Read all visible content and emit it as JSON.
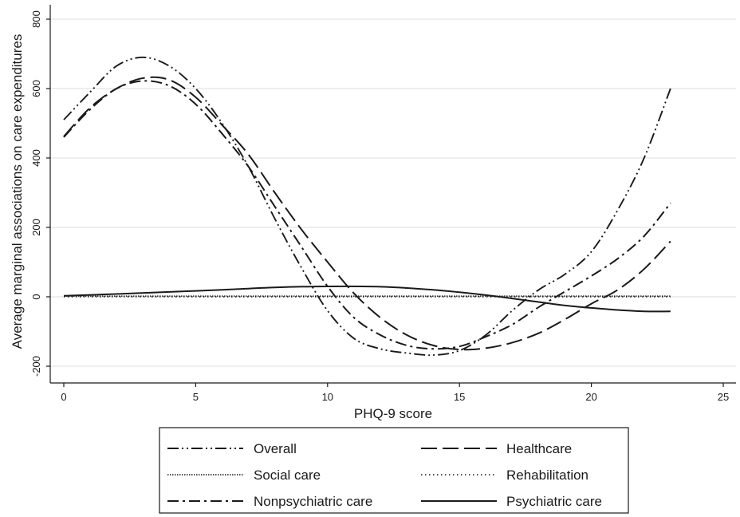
{
  "chart_data": {
    "type": "line",
    "title": "",
    "xlabel": "PHQ-9 score",
    "ylabel": "Average marginal associations on care expenditures",
    "xlim": [
      0,
      25
    ],
    "ylim": [
      -200,
      800
    ],
    "xticks": [
      0,
      5,
      10,
      15,
      20,
      25
    ],
    "yticks": [
      -200,
      0,
      200,
      400,
      600,
      800
    ],
    "grid": "horizontal",
    "legend_position": "bottom",
    "series": [
      {
        "name": "Overall",
        "style": "dash-dot-dot",
        "color": "#1a1a1a",
        "x": [
          0,
          1,
          2,
          3,
          4,
          5,
          6,
          7,
          8,
          9,
          10,
          11,
          12,
          13,
          14,
          15,
          16,
          17,
          18,
          19,
          20,
          21,
          22,
          23
        ],
        "y": [
          510,
          590,
          665,
          690,
          665,
          600,
          500,
          375,
          225,
          85,
          -40,
          -120,
          -150,
          -162,
          -168,
          -155,
          -110,
          -40,
          20,
          65,
          130,
          250,
          400,
          600
        ]
      },
      {
        "name": "Healthcare",
        "style": "long-dash",
        "color": "#1a1a1a",
        "x": [
          0,
          1,
          2,
          3,
          4,
          5,
          6,
          7,
          8,
          9,
          10,
          11,
          12,
          13,
          14,
          15,
          16,
          17,
          18,
          19,
          20,
          21,
          22,
          23
        ],
        "y": [
          462,
          545,
          600,
          630,
          625,
          575,
          495,
          410,
          300,
          195,
          100,
          10,
          -60,
          -110,
          -140,
          -152,
          -148,
          -132,
          -105,
          -65,
          -20,
          20,
          80,
          160
        ]
      },
      {
        "name": "Social care",
        "style": "fine-dot",
        "color": "#1a1a1a",
        "x": [
          0,
          5,
          10,
          15,
          20,
          23
        ],
        "y": [
          2,
          2,
          2,
          2,
          2,
          2
        ]
      },
      {
        "name": "Rehabilitation",
        "style": "dot",
        "color": "#1a1a1a",
        "x": [
          0,
          5,
          10,
          15,
          20,
          23
        ],
        "y": [
          0,
          0,
          0,
          0,
          0,
          0
        ]
      },
      {
        "name": "Nonpsychiatric care",
        "style": "dash-dot",
        "color": "#1a1a1a",
        "x": [
          0,
          1,
          2,
          3,
          4,
          5,
          6,
          7,
          8,
          9,
          10,
          11,
          12,
          13,
          14,
          15,
          16,
          17,
          18,
          19,
          20,
          21,
          22,
          23
        ],
        "y": [
          460,
          540,
          600,
          622,
          608,
          555,
          470,
          375,
          260,
          145,
          30,
          -60,
          -110,
          -140,
          -150,
          -143,
          -115,
          -80,
          -30,
          15,
          60,
          110,
          175,
          270
        ]
      },
      {
        "name": "Psychiatric care",
        "style": "solid",
        "color": "#1a1a1a",
        "x": [
          0,
          2,
          4,
          6,
          8,
          10,
          12,
          14,
          16,
          17,
          18,
          19,
          20,
          21,
          22,
          23
        ],
        "y": [
          3,
          8,
          14,
          20,
          27,
          30,
          29,
          20,
          5,
          -5,
          -15,
          -25,
          -32,
          -38,
          -42,
          -42
        ]
      }
    ]
  }
}
